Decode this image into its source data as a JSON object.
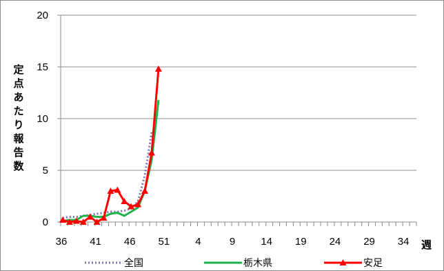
{
  "chart_data": {
    "type": "line",
    "ylabel": "定点あたり報告数",
    "xlabel": "週",
    "ylim": [
      0,
      20
    ],
    "yticks": [
      "0",
      "5",
      "10",
      "15",
      "20"
    ],
    "x_tick_labels": [
      "36",
      "41",
      "46",
      "51",
      "4",
      "9",
      "14",
      "19",
      "24",
      "29",
      "34"
    ],
    "x_categories": [
      36,
      37,
      38,
      39,
      40,
      41,
      42,
      43,
      44,
      45,
      46,
      47,
      48,
      49,
      50,
      51,
      52,
      1,
      2,
      3,
      4,
      5,
      6,
      7,
      8,
      9,
      10,
      11,
      12,
      13,
      14,
      15,
      16,
      17,
      18,
      19,
      20,
      21,
      22,
      23,
      24,
      25,
      26,
      27,
      28,
      29,
      30,
      31,
      32,
      33,
      34,
      35
    ],
    "grid": "horizontal",
    "legend_position": "bottom",
    "series": [
      {
        "name": "全国",
        "style": "dotted",
        "color": "#7b6fb0",
        "values": [
          0.4,
          0.5,
          0.5,
          0.6,
          0.7,
          0.8,
          0.9,
          1.0,
          1.0,
          1.1,
          1.3,
          2.0,
          4.5,
          8.7
        ]
      },
      {
        "name": "栃木県",
        "style": "solid",
        "color": "#1db34a",
        "values": [
          0.1,
          0.2,
          0.2,
          0.6,
          0.6,
          0.5,
          0.5,
          0.8,
          0.9,
          0.6,
          1.0,
          1.4,
          3.0,
          6.0,
          11.8
        ]
      },
      {
        "name": "安足",
        "style": "solid-marker",
        "color": "#ff0000",
        "values": [
          0.2,
          0.0,
          0.1,
          0.0,
          0.5,
          0.0,
          0.4,
          3.0,
          3.1,
          2.0,
          1.5,
          1.7,
          3.0,
          6.7,
          14.8
        ]
      }
    ]
  }
}
